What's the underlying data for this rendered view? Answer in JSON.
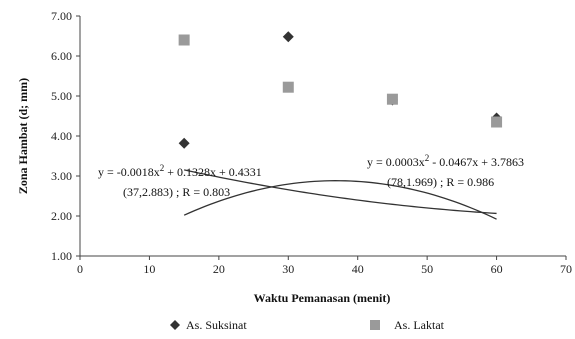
{
  "chart_data": {
    "type": "scatter",
    "xlabel": "Waktu Pemanasan (menit)",
    "ylabel": "Zona Hambat (d; mm)",
    "xlim": [
      0,
      70
    ],
    "ylim": [
      1.0,
      7.0
    ],
    "x_ticks": [
      "0",
      "10",
      "20",
      "30",
      "40",
      "50",
      "60",
      "70"
    ],
    "y_ticks": [
      "1.00",
      "2.00",
      "3.00",
      "4.00",
      "5.00",
      "6.00",
      "7.00"
    ],
    "grid": false,
    "legend_position": "bottom",
    "series": [
      {
        "name": "As. Suksinat",
        "marker": "diamond",
        "color": "#333333",
        "x": [
          15,
          30,
          45,
          60
        ],
        "y": [
          3.82,
          6.48,
          4.9,
          4.45
        ],
        "trend": {
          "type": "polynomial",
          "a": -0.0018,
          "b": 0.1328,
          "c": 0.4331,
          "from": 15,
          "to": 60
        },
        "equation": {
          "line1_prefix": "y = -0.0018x",
          "sup": "2",
          "line1_suffix": " + 0.1328x  + 0.4331",
          "line2": "(37,2.883)  ; R = 0.803"
        }
      },
      {
        "name": "As. Laktat",
        "marker": "square",
        "color": "#9a9a9a",
        "x": [
          15,
          30,
          45,
          60
        ],
        "y": [
          6.4,
          5.22,
          4.92,
          4.35
        ],
        "trend": {
          "type": "polynomial",
          "a": 0.0003,
          "b": -0.0467,
          "c": 3.7863,
          "from": 15,
          "to": 60
        },
        "equation": {
          "line1_prefix": "y = 0.0003x",
          "sup": "2",
          "line1_suffix": " - 0.0467x + 3.7863",
          "line2": "(78,1.969)  ; R = 0.986"
        }
      }
    ]
  }
}
